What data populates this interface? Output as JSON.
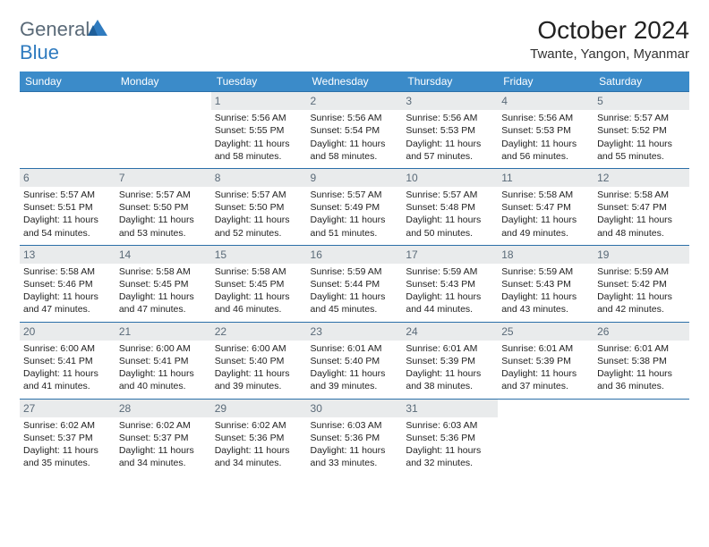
{
  "brand": {
    "name_a": "General",
    "name_b": "Blue"
  },
  "title": "October 2024",
  "location": "Twante, Yangon, Myanmar",
  "colors": {
    "header_bg": "#3b8bc9",
    "header_text": "#ffffff",
    "daynum_bg": "#e9ebec",
    "daynum_text": "#5a6a78",
    "row_border": "#2b6fa8",
    "brand_gray": "#5a6a78",
    "brand_blue": "#2f7bbf"
  },
  "day_headers": [
    "Sunday",
    "Monday",
    "Tuesday",
    "Wednesday",
    "Thursday",
    "Friday",
    "Saturday"
  ],
  "weeks": [
    [
      {
        "n": "",
        "sr": "",
        "ss": "",
        "dl": ""
      },
      {
        "n": "",
        "sr": "",
        "ss": "",
        "dl": ""
      },
      {
        "n": "1",
        "sr": "Sunrise: 5:56 AM",
        "ss": "Sunset: 5:55 PM",
        "dl": "Daylight: 11 hours and 58 minutes."
      },
      {
        "n": "2",
        "sr": "Sunrise: 5:56 AM",
        "ss": "Sunset: 5:54 PM",
        "dl": "Daylight: 11 hours and 58 minutes."
      },
      {
        "n": "3",
        "sr": "Sunrise: 5:56 AM",
        "ss": "Sunset: 5:53 PM",
        "dl": "Daylight: 11 hours and 57 minutes."
      },
      {
        "n": "4",
        "sr": "Sunrise: 5:56 AM",
        "ss": "Sunset: 5:53 PM",
        "dl": "Daylight: 11 hours and 56 minutes."
      },
      {
        "n": "5",
        "sr": "Sunrise: 5:57 AM",
        "ss": "Sunset: 5:52 PM",
        "dl": "Daylight: 11 hours and 55 minutes."
      }
    ],
    [
      {
        "n": "6",
        "sr": "Sunrise: 5:57 AM",
        "ss": "Sunset: 5:51 PM",
        "dl": "Daylight: 11 hours and 54 minutes."
      },
      {
        "n": "7",
        "sr": "Sunrise: 5:57 AM",
        "ss": "Sunset: 5:50 PM",
        "dl": "Daylight: 11 hours and 53 minutes."
      },
      {
        "n": "8",
        "sr": "Sunrise: 5:57 AM",
        "ss": "Sunset: 5:50 PM",
        "dl": "Daylight: 11 hours and 52 minutes."
      },
      {
        "n": "9",
        "sr": "Sunrise: 5:57 AM",
        "ss": "Sunset: 5:49 PM",
        "dl": "Daylight: 11 hours and 51 minutes."
      },
      {
        "n": "10",
        "sr": "Sunrise: 5:57 AM",
        "ss": "Sunset: 5:48 PM",
        "dl": "Daylight: 11 hours and 50 minutes."
      },
      {
        "n": "11",
        "sr": "Sunrise: 5:58 AM",
        "ss": "Sunset: 5:47 PM",
        "dl": "Daylight: 11 hours and 49 minutes."
      },
      {
        "n": "12",
        "sr": "Sunrise: 5:58 AM",
        "ss": "Sunset: 5:47 PM",
        "dl": "Daylight: 11 hours and 48 minutes."
      }
    ],
    [
      {
        "n": "13",
        "sr": "Sunrise: 5:58 AM",
        "ss": "Sunset: 5:46 PM",
        "dl": "Daylight: 11 hours and 47 minutes."
      },
      {
        "n": "14",
        "sr": "Sunrise: 5:58 AM",
        "ss": "Sunset: 5:45 PM",
        "dl": "Daylight: 11 hours and 47 minutes."
      },
      {
        "n": "15",
        "sr": "Sunrise: 5:58 AM",
        "ss": "Sunset: 5:45 PM",
        "dl": "Daylight: 11 hours and 46 minutes."
      },
      {
        "n": "16",
        "sr": "Sunrise: 5:59 AM",
        "ss": "Sunset: 5:44 PM",
        "dl": "Daylight: 11 hours and 45 minutes."
      },
      {
        "n": "17",
        "sr": "Sunrise: 5:59 AM",
        "ss": "Sunset: 5:43 PM",
        "dl": "Daylight: 11 hours and 44 minutes."
      },
      {
        "n": "18",
        "sr": "Sunrise: 5:59 AM",
        "ss": "Sunset: 5:43 PM",
        "dl": "Daylight: 11 hours and 43 minutes."
      },
      {
        "n": "19",
        "sr": "Sunrise: 5:59 AM",
        "ss": "Sunset: 5:42 PM",
        "dl": "Daylight: 11 hours and 42 minutes."
      }
    ],
    [
      {
        "n": "20",
        "sr": "Sunrise: 6:00 AM",
        "ss": "Sunset: 5:41 PM",
        "dl": "Daylight: 11 hours and 41 minutes."
      },
      {
        "n": "21",
        "sr": "Sunrise: 6:00 AM",
        "ss": "Sunset: 5:41 PM",
        "dl": "Daylight: 11 hours and 40 minutes."
      },
      {
        "n": "22",
        "sr": "Sunrise: 6:00 AM",
        "ss": "Sunset: 5:40 PM",
        "dl": "Daylight: 11 hours and 39 minutes."
      },
      {
        "n": "23",
        "sr": "Sunrise: 6:01 AM",
        "ss": "Sunset: 5:40 PM",
        "dl": "Daylight: 11 hours and 39 minutes."
      },
      {
        "n": "24",
        "sr": "Sunrise: 6:01 AM",
        "ss": "Sunset: 5:39 PM",
        "dl": "Daylight: 11 hours and 38 minutes."
      },
      {
        "n": "25",
        "sr": "Sunrise: 6:01 AM",
        "ss": "Sunset: 5:39 PM",
        "dl": "Daylight: 11 hours and 37 minutes."
      },
      {
        "n": "26",
        "sr": "Sunrise: 6:01 AM",
        "ss": "Sunset: 5:38 PM",
        "dl": "Daylight: 11 hours and 36 minutes."
      }
    ],
    [
      {
        "n": "27",
        "sr": "Sunrise: 6:02 AM",
        "ss": "Sunset: 5:37 PM",
        "dl": "Daylight: 11 hours and 35 minutes."
      },
      {
        "n": "28",
        "sr": "Sunrise: 6:02 AM",
        "ss": "Sunset: 5:37 PM",
        "dl": "Daylight: 11 hours and 34 minutes."
      },
      {
        "n": "29",
        "sr": "Sunrise: 6:02 AM",
        "ss": "Sunset: 5:36 PM",
        "dl": "Daylight: 11 hours and 34 minutes."
      },
      {
        "n": "30",
        "sr": "Sunrise: 6:03 AM",
        "ss": "Sunset: 5:36 PM",
        "dl": "Daylight: 11 hours and 33 minutes."
      },
      {
        "n": "31",
        "sr": "Sunrise: 6:03 AM",
        "ss": "Sunset: 5:36 PM",
        "dl": "Daylight: 11 hours and 32 minutes."
      },
      {
        "n": "",
        "sr": "",
        "ss": "",
        "dl": ""
      },
      {
        "n": "",
        "sr": "",
        "ss": "",
        "dl": ""
      }
    ]
  ]
}
